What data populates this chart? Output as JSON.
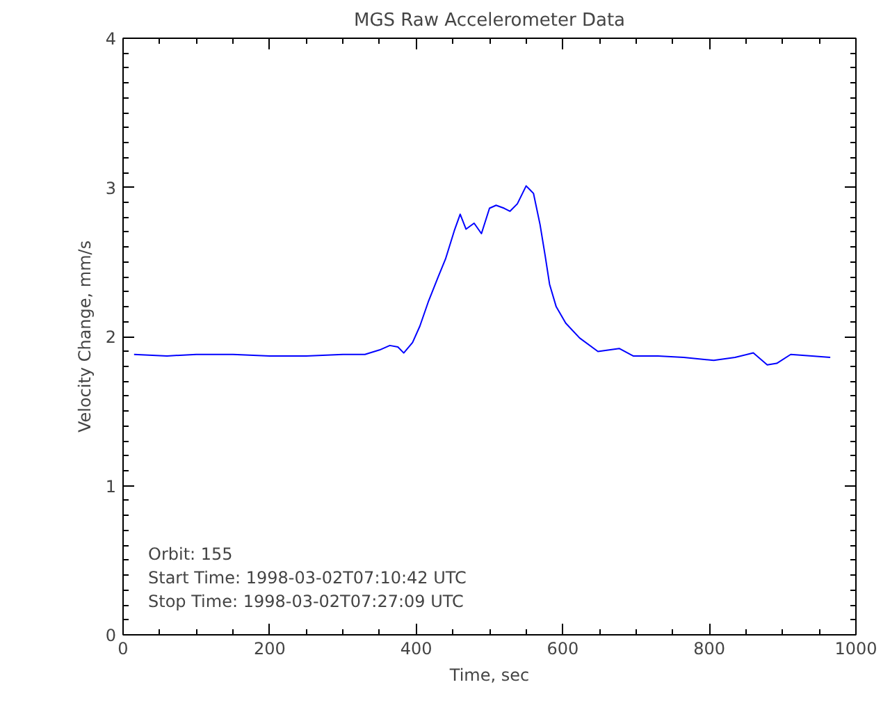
{
  "chart_data": {
    "type": "line",
    "title": "MGS Raw Accelerometer Data",
    "xlabel": "Time, sec",
    "ylabel": "Velocity Change, mm/s",
    "annotations": [
      "Orbit:       155",
      "Start Time: 1998-03-02T07:10:42 UTC",
      "Stop Time: 1998-03-02T07:27:09 UTC"
    ],
    "x": [
      15,
      60,
      100,
      150,
      200,
      250,
      300,
      330,
      350,
      364,
      375,
      383,
      395,
      405,
      417,
      430,
      440,
      452,
      460,
      468,
      479,
      489,
      500,
      509,
      520,
      528,
      538,
      550,
      560,
      569,
      576,
      582,
      591,
      604,
      623,
      648,
      677,
      696,
      730,
      765,
      806,
      835,
      860,
      879,
      892,
      911,
      940,
      965
    ],
    "series": [
      {
        "color": "#0000ff",
        "values": [
          1.88,
          1.87,
          1.88,
          1.88,
          1.87,
          1.87,
          1.88,
          1.88,
          1.91,
          1.94,
          1.93,
          1.89,
          1.96,
          2.07,
          2.24,
          2.4,
          2.52,
          2.71,
          2.82,
          2.72,
          2.76,
          2.69,
          2.86,
          2.88,
          2.86,
          2.84,
          2.89,
          3.01,
          2.96,
          2.75,
          2.54,
          2.35,
          2.2,
          2.09,
          1.99,
          1.9,
          1.92,
          1.87,
          1.87,
          1.86,
          1.84,
          1.86,
          1.89,
          1.81,
          1.82,
          1.88,
          1.87,
          1.86
        ]
      }
    ],
    "xlim": [
      0,
      1000
    ],
    "xticks": [
      0,
      200,
      400,
      600,
      800,
      1000
    ],
    "ylim": [
      0,
      4
    ],
    "yticks": [
      0,
      1,
      2,
      3,
      4
    ],
    "grid": false,
    "marker": "none",
    "line_style": "solid"
  }
}
